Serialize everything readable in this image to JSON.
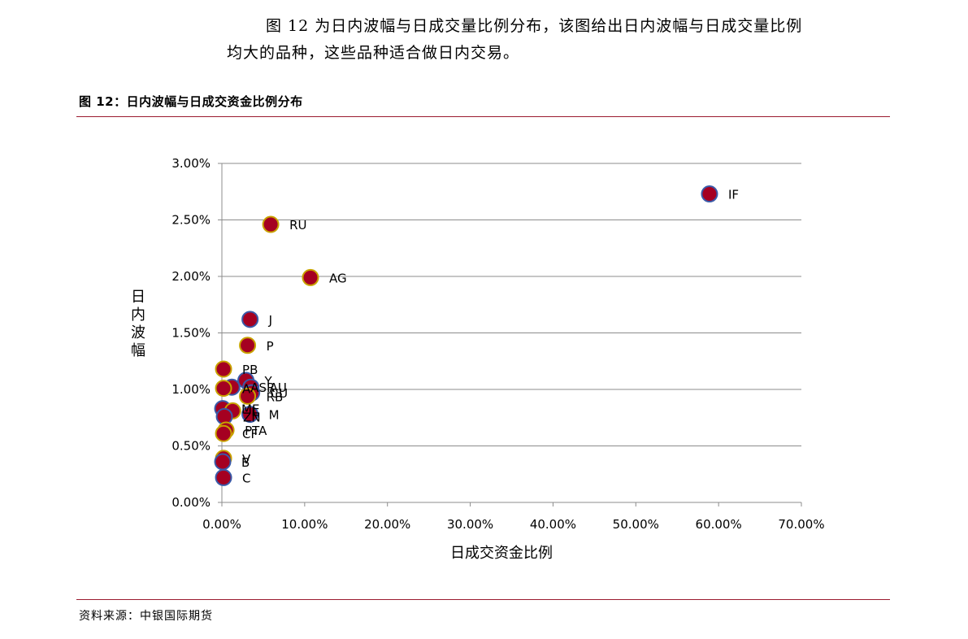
{
  "paragraph": {
    "line1": "图 12 为日内波幅与日成交量比例分布，该图给出日内波幅与日成交量比例",
    "line2": "均大的品种，这些品种适合做日内交易。"
  },
  "figure_title": "图 12：日内波幅与日成交资金比例分布",
  "source": "资料来源：中银国际期货",
  "chart_data": {
    "type": "scatter",
    "title": "",
    "xlabel": "日成交资金比例",
    "ylabel": "日内波幅",
    "xlim": [
      0,
      0.7
    ],
    "ylim": [
      0,
      0.03
    ],
    "x_ticks": [
      "0.00%",
      "10.00%",
      "20.00%",
      "30.00%",
      "40.00%",
      "50.00%",
      "60.00%",
      "70.00%"
    ],
    "y_ticks": [
      "0.00%",
      "0.50%",
      "1.00%",
      "1.50%",
      "2.00%",
      "2.50%",
      "3.00%"
    ],
    "grid": "horizontal",
    "marker_fill": "#a50021",
    "points": [
      {
        "label": "IF",
        "x": 0.589,
        "y": 0.0273,
        "edge": "#3a5aa8"
      },
      {
        "label": "RU",
        "x": 0.059,
        "y": 0.0246,
        "edge": "#c8a200"
      },
      {
        "label": "AG",
        "x": 0.107,
        "y": 0.0199,
        "edge": "#c8a200"
      },
      {
        "label": "J",
        "x": 0.034,
        "y": 0.0162,
        "edge": "#3a5aa8"
      },
      {
        "label": "P",
        "x": 0.031,
        "y": 0.0139,
        "edge": "#c8a200"
      },
      {
        "label": "PB",
        "x": 0.002,
        "y": 0.0118,
        "edge": "#c8a200"
      },
      {
        "label": "Y",
        "x": 0.029,
        "y": 0.0108,
        "edge": "#3a5aa8"
      },
      {
        "label": "AU",
        "x": 0.035,
        "y": 0.0102,
        "edge": "#3a5aa8"
      },
      {
        "label": "ASR",
        "x": 0.012,
        "y": 0.0102,
        "edge": "#3a5aa8"
      },
      {
        "label": "A",
        "x": 0.002,
        "y": 0.0101,
        "edge": "#c8a200"
      },
      {
        "label": "CU",
        "x": 0.036,
        "y": 0.0097,
        "edge": "#3a5aa8"
      },
      {
        "label": "RB",
        "x": 0.031,
        "y": 0.0094,
        "edge": "#c8a200"
      },
      {
        "label": "ME",
        "x": 0.001,
        "y": 0.0083,
        "edge": "#3a5aa8"
      },
      {
        "label": "M",
        "x": 0.034,
        "y": 0.0078,
        "edge": "#3a5aa8"
      },
      {
        "label": "L",
        "x": 0.013,
        "y": 0.0081,
        "edge": "#c8a200"
      },
      {
        "label": "ZN",
        "x": 0.003,
        "y": 0.0076,
        "edge": "#3a5aa8"
      },
      {
        "label": "PTA",
        "x": 0.005,
        "y": 0.0064,
        "edge": "#c8a200"
      },
      {
        "label": "CF",
        "x": 0.002,
        "y": 0.0061,
        "edge": "#c8a200"
      },
      {
        "label": "V",
        "x": 0.002,
        "y": 0.0039,
        "edge": "#c8a200"
      },
      {
        "label": "B",
        "x": 0.001,
        "y": 0.0036,
        "edge": "#3a5aa8"
      },
      {
        "label": "C",
        "x": 0.002,
        "y": 0.0022,
        "edge": "#3a5aa8"
      }
    ]
  }
}
